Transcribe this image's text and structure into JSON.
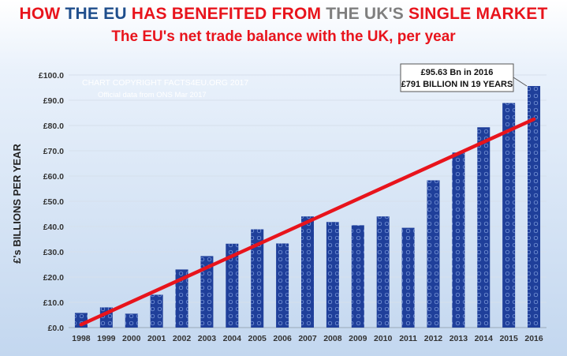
{
  "title_segments": [
    {
      "text": "HOW ",
      "color": "red"
    },
    {
      "text": "THE ",
      "color": "blue"
    },
    {
      "text": "EU ",
      "color": "blue"
    },
    {
      "text": "HAS BENEFITED FROM ",
      "color": "red"
    },
    {
      "text": "THE ",
      "color": "gray"
    },
    {
      "text": "UK'S ",
      "color": "gray"
    },
    {
      "text": "SINGLE MARKET",
      "color": "red"
    }
  ],
  "subtitle": "The EU's net trade balance with the UK, per year",
  "copyright": "CHART COPYRIGHT FACTS4EU.ORG 2017",
  "source": "Official data from ONS Mar 2017",
  "callout": {
    "line1": "£95.63 Bn in 2016",
    "line2": "£791 BILLION IN 19 YEARS"
  },
  "colors": {
    "bar": "#1f3f9a",
    "trend": "#e8141c",
    "title_red": "#e8141c",
    "title_blue": "#1f4e8c",
    "title_gray": "#7f7f7f"
  },
  "chart_data": {
    "type": "bar",
    "ylabel": "£'s BILLIONS PER YEAR",
    "ylim": [
      0,
      100
    ],
    "y_tick_labels": [
      "£0.0",
      "£10.0",
      "£20.0",
      "£30.0",
      "£40.0",
      "£50.0",
      "£60.0",
      "£70.0",
      "£80.0",
      "£90.0",
      "£100.0"
    ],
    "categories": [
      "1998",
      "1999",
      "2000",
      "2001",
      "2002",
      "2003",
      "2004",
      "2005",
      "2006",
      "2007",
      "2008",
      "2009",
      "2010",
      "2011",
      "2012",
      "2013",
      "2014",
      "2015",
      "2016"
    ],
    "values": [
      5.8,
      8.0,
      5.5,
      13.0,
      23.0,
      28.3,
      33.2,
      38.9,
      33.3,
      44.0,
      41.8,
      40.5,
      44.0,
      39.5,
      58.3,
      69.3,
      79.3,
      88.9,
      95.63
    ],
    "trendline": {
      "start": [
        1998,
        1.2
      ],
      "end": [
        2016,
        82.5
      ]
    },
    "grid": true,
    "legend": "none"
  }
}
